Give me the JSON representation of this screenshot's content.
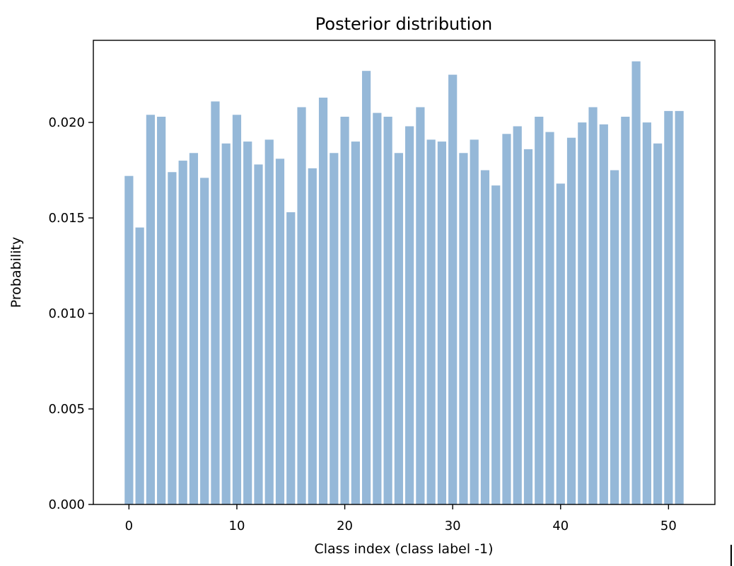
{
  "chart_data": {
    "type": "bar",
    "title": "Posterior distribution",
    "xlabel": "Class index (class label -1)",
    "ylabel": "Probability",
    "x": [
      0,
      1,
      2,
      3,
      4,
      5,
      6,
      7,
      8,
      9,
      10,
      11,
      12,
      13,
      14,
      15,
      16,
      17,
      18,
      19,
      20,
      21,
      22,
      23,
      24,
      25,
      26,
      27,
      28,
      29,
      30,
      31,
      32,
      33,
      34,
      35,
      36,
      37,
      38,
      39,
      40,
      41,
      42,
      43,
      44,
      45,
      46,
      47,
      48,
      49,
      50,
      51
    ],
    "values": [
      0.0172,
      0.0145,
      0.0204,
      0.0203,
      0.0174,
      0.018,
      0.0184,
      0.0171,
      0.0211,
      0.0189,
      0.0204,
      0.019,
      0.0178,
      0.0191,
      0.0181,
      0.0153,
      0.0208,
      0.0176,
      0.0213,
      0.0184,
      0.0203,
      0.019,
      0.0227,
      0.0205,
      0.0203,
      0.0184,
      0.0198,
      0.0208,
      0.0191,
      0.019,
      0.0225,
      0.0184,
      0.0191,
      0.0175,
      0.0167,
      0.0194,
      0.0198,
      0.0186,
      0.0203,
      0.0195,
      0.0168,
      0.0192,
      0.02,
      0.0208,
      0.0199,
      0.0175,
      0.0203,
      0.0232,
      0.02,
      0.0189,
      0.0206,
      0.0206
    ],
    "xlim": [
      -3.3,
      54.3
    ],
    "ylim": [
      0,
      0.0243
    ],
    "xticks": [
      0,
      10,
      20,
      30,
      40,
      50
    ],
    "xtick_labels": [
      "0",
      "10",
      "20",
      "30",
      "40",
      "50"
    ],
    "yticks": [
      0,
      0.005,
      0.01,
      0.015,
      0.02
    ],
    "ytick_labels": [
      "0.000",
      "0.005",
      "0.010",
      "0.015",
      "0.020"
    ],
    "bar_color": "#95b8d8",
    "grid": false,
    "legend": false
  }
}
